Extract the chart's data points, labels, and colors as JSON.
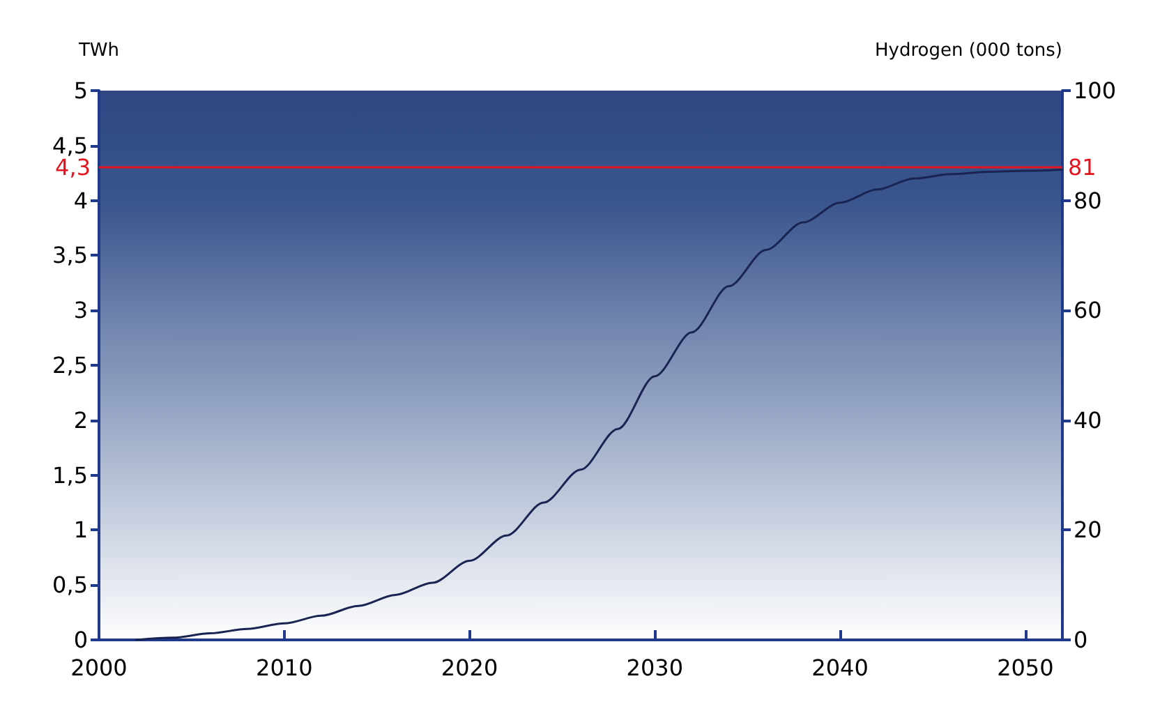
{
  "chart_data": {
    "type": "line",
    "ylabel": "TWh",
    "y2label": "Hydrogen (000 tons)",
    "x": [
      2002,
      2004,
      2006,
      2008,
      2010,
      2012,
      2014,
      2016,
      2018,
      2020,
      2022,
      2024,
      2026,
      2028,
      2030,
      2032,
      2034,
      2036,
      2038,
      2040,
      2042,
      2044,
      2046,
      2048,
      2050,
      2052
    ],
    "series": [
      {
        "color": "#1a2452",
        "values": [
          0,
          0.02,
          0.06,
          0.1,
          0.15,
          0.22,
          0.31,
          0.41,
          0.52,
          0.72,
          0.95,
          1.25,
          1.55,
          1.92,
          2.4,
          2.8,
          3.22,
          3.55,
          3.8,
          3.98,
          4.1,
          4.2,
          4.24,
          4.26,
          4.27,
          4.28
        ]
      }
    ],
    "xlim": [
      2000,
      2052
    ],
    "xticks": [
      2000,
      2010,
      2020,
      2030,
      2040,
      2050
    ],
    "ylim": [
      0,
      5
    ],
    "yticks": [
      0,
      {
        "value": 0.5,
        "label": "0,5"
      },
      1,
      {
        "value": 1.5,
        "label": "1,5"
      },
      2,
      {
        "value": 2.5,
        "label": "2,5"
      },
      3,
      {
        "value": 3.5,
        "label": "3,5"
      },
      4,
      {
        "value": 4.5,
        "label": "4,5"
      },
      5
    ],
    "y2lim": [
      0,
      100
    ],
    "y2ticks": [
      0,
      20,
      40,
      60,
      80,
      100
    ],
    "ref_lines": [
      {
        "axis": "y",
        "value": 4.3,
        "label": "4,3",
        "color": "#e3141e"
      }
    ],
    "annotations": [
      {
        "text": "81",
        "x": 2052,
        "y": 4.3
      }
    ],
    "grid": false,
    "marker": "none",
    "line_style": "solid"
  }
}
